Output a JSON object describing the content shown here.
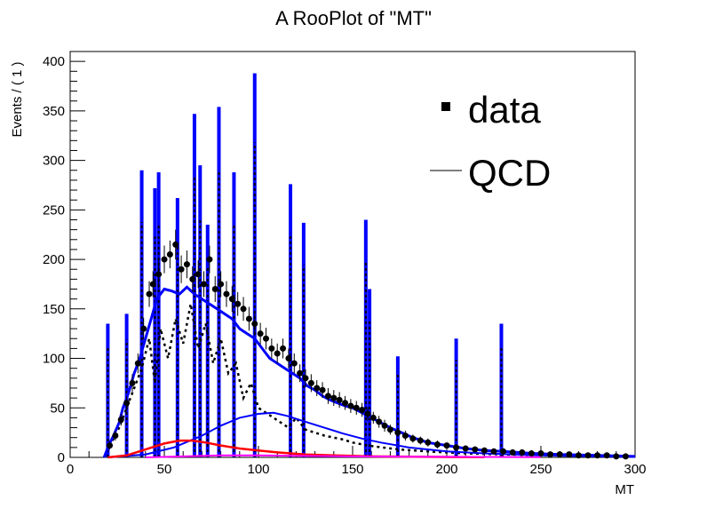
{
  "chart_data": {
    "type": "line",
    "title": "A RooPlot of \"MT\"",
    "xlabel": "MT",
    "ylabel": "Events / ( 1 )",
    "xlim": [
      0,
      300
    ],
    "ylim": [
      0,
      410
    ],
    "x_ticks": [
      0,
      50,
      100,
      150,
      200,
      250,
      300
    ],
    "y_ticks": [
      0,
      50,
      100,
      150,
      200,
      250,
      300,
      350,
      400
    ],
    "legend": {
      "position": "top-right",
      "entries": [
        {
          "label": "data",
          "style": "marker"
        },
        {
          "label": "QCD",
          "style": "line"
        }
      ]
    },
    "colors": {
      "qcd": "#0000ff",
      "dashed": "#000000",
      "red": "#ff0000",
      "magenta": "#ff00ff",
      "data": "#000000"
    },
    "spikes": [
      {
        "x": 20,
        "y": 135
      },
      {
        "x": 30,
        "y": 145
      },
      {
        "x": 38,
        "y": 290
      },
      {
        "x": 45,
        "y": 272
      },
      {
        "x": 47,
        "y": 288
      },
      {
        "x": 57,
        "y": 262
      },
      {
        "x": 66,
        "y": 347
      },
      {
        "x": 69,
        "y": 295
      },
      {
        "x": 73,
        "y": 235
      },
      {
        "x": 79,
        "y": 354
      },
      {
        "x": 87,
        "y": 288
      },
      {
        "x": 98,
        "y": 388
      },
      {
        "x": 117,
        "y": 276
      },
      {
        "x": 124,
        "y": 237
      },
      {
        "x": 157,
        "y": 240
      },
      {
        "x": 159,
        "y": 170
      },
      {
        "x": 174,
        "y": 102
      },
      {
        "x": 205,
        "y": 120
      },
      {
        "x": 229,
        "y": 135
      }
    ],
    "qcd_curve": [
      {
        "x": 18,
        "y": 0
      },
      {
        "x": 20,
        "y": 10
      },
      {
        "x": 23,
        "y": 22
      },
      {
        "x": 26,
        "y": 35
      },
      {
        "x": 28,
        "y": 50
      },
      {
        "x": 31,
        "y": 65
      },
      {
        "x": 34,
        "y": 85
      },
      {
        "x": 37,
        "y": 100
      },
      {
        "x": 40,
        "y": 120
      },
      {
        "x": 43,
        "y": 140
      },
      {
        "x": 46,
        "y": 160
      },
      {
        "x": 50,
        "y": 170
      },
      {
        "x": 54,
        "y": 168
      },
      {
        "x": 58,
        "y": 165
      },
      {
        "x": 62,
        "y": 172
      },
      {
        "x": 66,
        "y": 165
      },
      {
        "x": 70,
        "y": 160
      },
      {
        "x": 74,
        "y": 155
      },
      {
        "x": 78,
        "y": 150
      },
      {
        "x": 82,
        "y": 145
      },
      {
        "x": 86,
        "y": 140
      },
      {
        "x": 90,
        "y": 130
      },
      {
        "x": 94,
        "y": 125
      },
      {
        "x": 98,
        "y": 120
      },
      {
        "x": 102,
        "y": 110
      },
      {
        "x": 106,
        "y": 100
      },
      {
        "x": 110,
        "y": 95
      },
      {
        "x": 114,
        "y": 90
      },
      {
        "x": 118,
        "y": 85
      },
      {
        "x": 122,
        "y": 80
      },
      {
        "x": 126,
        "y": 72
      },
      {
        "x": 130,
        "y": 68
      },
      {
        "x": 134,
        "y": 62
      },
      {
        "x": 138,
        "y": 58
      },
      {
        "x": 142,
        "y": 55
      },
      {
        "x": 146,
        "y": 52
      },
      {
        "x": 150,
        "y": 50
      },
      {
        "x": 154,
        "y": 46
      },
      {
        "x": 158,
        "y": 42
      },
      {
        "x": 162,
        "y": 38
      },
      {
        "x": 166,
        "y": 34
      },
      {
        "x": 170,
        "y": 30
      },
      {
        "x": 176,
        "y": 25
      },
      {
        "x": 182,
        "y": 20
      },
      {
        "x": 190,
        "y": 15
      },
      {
        "x": 200,
        "y": 12
      },
      {
        "x": 210,
        "y": 9
      },
      {
        "x": 220,
        "y": 7
      },
      {
        "x": 230,
        "y": 6
      },
      {
        "x": 245,
        "y": 4
      },
      {
        "x": 260,
        "y": 3
      },
      {
        "x": 280,
        "y": 2
      },
      {
        "x": 300,
        "y": 1
      }
    ],
    "dashed_curve": [
      {
        "x": 18,
        "y": 0
      },
      {
        "x": 22,
        "y": 15
      },
      {
        "x": 26,
        "y": 30
      },
      {
        "x": 30,
        "y": 50
      },
      {
        "x": 34,
        "y": 70
      },
      {
        "x": 38,
        "y": 90
      },
      {
        "x": 42,
        "y": 120
      },
      {
        "x": 45,
        "y": 75
      },
      {
        "x": 48,
        "y": 130
      },
      {
        "x": 52,
        "y": 100
      },
      {
        "x": 56,
        "y": 140
      },
      {
        "x": 60,
        "y": 115
      },
      {
        "x": 64,
        "y": 155
      },
      {
        "x": 68,
        "y": 110
      },
      {
        "x": 72,
        "y": 135
      },
      {
        "x": 76,
        "y": 95
      },
      {
        "x": 80,
        "y": 120
      },
      {
        "x": 84,
        "y": 85
      },
      {
        "x": 88,
        "y": 95
      },
      {
        "x": 92,
        "y": 60
      },
      {
        "x": 96,
        "y": 75
      },
      {
        "x": 100,
        "y": 50
      },
      {
        "x": 104,
        "y": 45
      },
      {
        "x": 108,
        "y": 40
      },
      {
        "x": 112,
        "y": 35
      },
      {
        "x": 116,
        "y": 30
      },
      {
        "x": 120,
        "y": 40
      },
      {
        "x": 125,
        "y": 28
      },
      {
        "x": 130,
        "y": 25
      },
      {
        "x": 135,
        "y": 22
      },
      {
        "x": 140,
        "y": 20
      },
      {
        "x": 145,
        "y": 18
      },
      {
        "x": 150,
        "y": 15
      },
      {
        "x": 158,
        "y": 12
      },
      {
        "x": 166,
        "y": 10
      },
      {
        "x": 175,
        "y": 8
      },
      {
        "x": 190,
        "y": 6
      },
      {
        "x": 210,
        "y": 4
      },
      {
        "x": 230,
        "y": 3
      },
      {
        "x": 260,
        "y": 2
      },
      {
        "x": 300,
        "y": 1
      }
    ],
    "blue_bump": [
      {
        "x": 20,
        "y": 0
      },
      {
        "x": 40,
        "y": 3
      },
      {
        "x": 55,
        "y": 10
      },
      {
        "x": 70,
        "y": 22
      },
      {
        "x": 80,
        "y": 32
      },
      {
        "x": 90,
        "y": 40
      },
      {
        "x": 100,
        "y": 44
      },
      {
        "x": 108,
        "y": 45
      },
      {
        "x": 115,
        "y": 42
      },
      {
        "x": 125,
        "y": 36
      },
      {
        "x": 135,
        "y": 30
      },
      {
        "x": 145,
        "y": 24
      },
      {
        "x": 155,
        "y": 19
      },
      {
        "x": 165,
        "y": 15
      },
      {
        "x": 180,
        "y": 10
      },
      {
        "x": 200,
        "y": 6
      },
      {
        "x": 220,
        "y": 4
      },
      {
        "x": 250,
        "y": 2
      },
      {
        "x": 280,
        "y": 1
      },
      {
        "x": 300,
        "y": 0.5
      }
    ],
    "red_curve": [
      {
        "x": 20,
        "y": 0
      },
      {
        "x": 30,
        "y": 2
      },
      {
        "x": 40,
        "y": 8
      },
      {
        "x": 50,
        "y": 14
      },
      {
        "x": 58,
        "y": 17
      },
      {
        "x": 65,
        "y": 17
      },
      {
        "x": 72,
        "y": 15
      },
      {
        "x": 80,
        "y": 12
      },
      {
        "x": 90,
        "y": 9
      },
      {
        "x": 100,
        "y": 7
      },
      {
        "x": 110,
        "y": 5
      },
      {
        "x": 125,
        "y": 3
      },
      {
        "x": 140,
        "y": 2
      },
      {
        "x": 160,
        "y": 1
      },
      {
        "x": 190,
        "y": 0.5
      },
      {
        "x": 220,
        "y": 0.2
      }
    ],
    "magenta_curve": [
      {
        "x": 40,
        "y": 0
      },
      {
        "x": 60,
        "y": 1
      },
      {
        "x": 80,
        "y": 2
      },
      {
        "x": 100,
        "y": 2
      },
      {
        "x": 120,
        "y": 1.5
      },
      {
        "x": 150,
        "y": 1
      },
      {
        "x": 200,
        "y": 0.5
      },
      {
        "x": 250,
        "y": 0.2
      }
    ],
    "data_points": [
      {
        "x": 21,
        "y": 12,
        "err": 4
      },
      {
        "x": 24,
        "y": 22,
        "err": 5
      },
      {
        "x": 27,
        "y": 38,
        "err": 6
      },
      {
        "x": 30,
        "y": 55,
        "err": 7
      },
      {
        "x": 33,
        "y": 75,
        "err": 9
      },
      {
        "x": 36,
        "y": 95,
        "err": 10
      },
      {
        "x": 39,
        "y": 130,
        "err": 11
      },
      {
        "x": 42,
        "y": 165,
        "err": 13
      },
      {
        "x": 44,
        "y": 175,
        "err": 13
      },
      {
        "x": 47,
        "y": 185,
        "err": 14
      },
      {
        "x": 50,
        "y": 200,
        "err": 14
      },
      {
        "x": 53,
        "y": 205,
        "err": 14
      },
      {
        "x": 56,
        "y": 215,
        "err": 15
      },
      {
        "x": 59,
        "y": 190,
        "err": 14
      },
      {
        "x": 62,
        "y": 195,
        "err": 14
      },
      {
        "x": 65,
        "y": 180,
        "err": 13
      },
      {
        "x": 68,
        "y": 185,
        "err": 14
      },
      {
        "x": 71,
        "y": 175,
        "err": 13
      },
      {
        "x": 74,
        "y": 200,
        "err": 14
      },
      {
        "x": 77,
        "y": 170,
        "err": 13
      },
      {
        "x": 80,
        "y": 175,
        "err": 13
      },
      {
        "x": 83,
        "y": 165,
        "err": 13
      },
      {
        "x": 86,
        "y": 160,
        "err": 13
      },
      {
        "x": 89,
        "y": 155,
        "err": 12
      },
      {
        "x": 92,
        "y": 150,
        "err": 12
      },
      {
        "x": 95,
        "y": 140,
        "err": 12
      },
      {
        "x": 98,
        "y": 135,
        "err": 12
      },
      {
        "x": 101,
        "y": 125,
        "err": 11
      },
      {
        "x": 104,
        "y": 120,
        "err": 11
      },
      {
        "x": 107,
        "y": 110,
        "err": 10
      },
      {
        "x": 110,
        "y": 105,
        "err": 10
      },
      {
        "x": 113,
        "y": 110,
        "err": 10
      },
      {
        "x": 116,
        "y": 100,
        "err": 10
      },
      {
        "x": 119,
        "y": 95,
        "err": 10
      },
      {
        "x": 122,
        "y": 85,
        "err": 9
      },
      {
        "x": 125,
        "y": 80,
        "err": 9
      },
      {
        "x": 128,
        "y": 75,
        "err": 9
      },
      {
        "x": 131,
        "y": 70,
        "err": 8
      },
      {
        "x": 134,
        "y": 68,
        "err": 8
      },
      {
        "x": 137,
        "y": 62,
        "err": 8
      },
      {
        "x": 140,
        "y": 60,
        "err": 8
      },
      {
        "x": 143,
        "y": 58,
        "err": 8
      },
      {
        "x": 146,
        "y": 55,
        "err": 7
      },
      {
        "x": 149,
        "y": 52,
        "err": 7
      },
      {
        "x": 152,
        "y": 50,
        "err": 7
      },
      {
        "x": 155,
        "y": 48,
        "err": 7
      },
      {
        "x": 158,
        "y": 44,
        "err": 7
      },
      {
        "x": 161,
        "y": 40,
        "err": 6
      },
      {
        "x": 164,
        "y": 36,
        "err": 6
      },
      {
        "x": 167,
        "y": 32,
        "err": 6
      },
      {
        "x": 170,
        "y": 28,
        "err": 5
      },
      {
        "x": 174,
        "y": 25,
        "err": 5
      },
      {
        "x": 178,
        "y": 22,
        "err": 5
      },
      {
        "x": 182,
        "y": 19,
        "err": 4
      },
      {
        "x": 186,
        "y": 17,
        "err": 4
      },
      {
        "x": 190,
        "y": 15,
        "err": 4
      },
      {
        "x": 195,
        "y": 13,
        "err": 4
      },
      {
        "x": 200,
        "y": 12,
        "err": 3
      },
      {
        "x": 205,
        "y": 10,
        "err": 3
      },
      {
        "x": 210,
        "y": 9,
        "err": 3
      },
      {
        "x": 215,
        "y": 8,
        "err": 3
      },
      {
        "x": 220,
        "y": 7,
        "err": 3
      },
      {
        "x": 225,
        "y": 6,
        "err": 2
      },
      {
        "x": 230,
        "y": 6,
        "err": 2
      },
      {
        "x": 235,
        "y": 5,
        "err": 2
      },
      {
        "x": 240,
        "y": 5,
        "err": 2
      },
      {
        "x": 245,
        "y": 4,
        "err": 2
      },
      {
        "x": 250,
        "y": 4,
        "err": 2
      },
      {
        "x": 255,
        "y": 3,
        "err": 2
      },
      {
        "x": 260,
        "y": 3,
        "err": 2
      },
      {
        "x": 265,
        "y": 3,
        "err": 2
      },
      {
        "x": 270,
        "y": 2,
        "err": 1
      },
      {
        "x": 275,
        "y": 2,
        "err": 1
      },
      {
        "x": 280,
        "y": 2,
        "err": 1
      },
      {
        "x": 285,
        "y": 2,
        "err": 1
      },
      {
        "x": 290,
        "y": 1,
        "err": 1
      },
      {
        "x": 295,
        "y": 1,
        "err": 1
      }
    ]
  }
}
